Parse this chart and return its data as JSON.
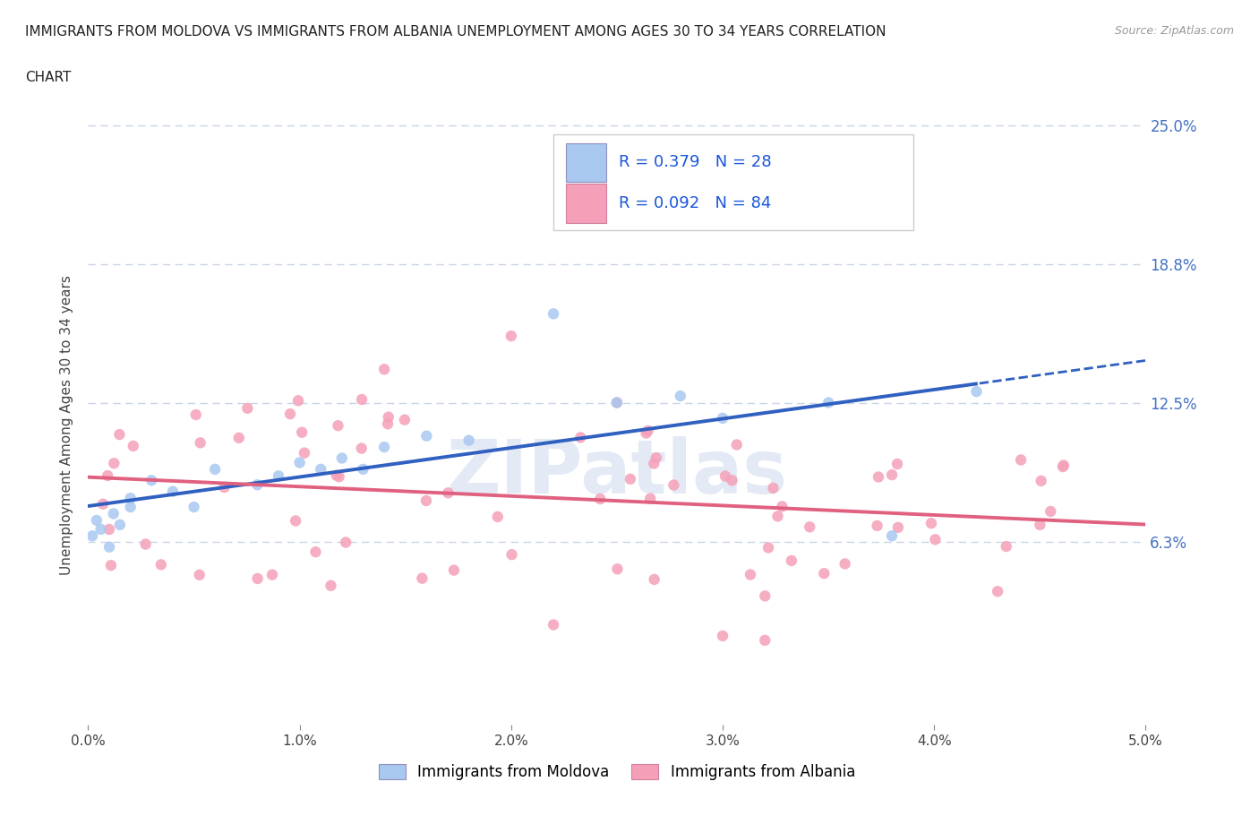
{
  "title_line1": "IMMIGRANTS FROM MOLDOVA VS IMMIGRANTS FROM ALBANIA UNEMPLOYMENT AMONG AGES 30 TO 34 YEARS CORRELATION",
  "title_line2": "CHART",
  "source": "Source: ZipAtlas.com",
  "ylabel": "Unemployment Among Ages 30 to 34 years",
  "xlim": [
    0.0,
    0.05
  ],
  "ylim": [
    -0.02,
    0.25
  ],
  "ytick_vals": [
    0.0625,
    0.125,
    0.1875,
    0.25
  ],
  "ytick_labels": [
    "6.3%",
    "12.5%",
    "18.8%",
    "25.0%"
  ],
  "xtick_vals": [
    0.0,
    0.01,
    0.02,
    0.03,
    0.04,
    0.05
  ],
  "xtick_labels": [
    "0.0%",
    "1.0%",
    "2.0%",
    "3.0%",
    "4.0%",
    "5.0%"
  ],
  "moldova_color": "#a8c8f0",
  "albania_color": "#f5a0b8",
  "moldova_line_color": "#3060c0",
  "albania_line_color": "#e06080",
  "moldova_R": 0.379,
  "moldova_N": 28,
  "albania_R": 0.092,
  "albania_N": 84,
  "legend_text_color": "#1a56db",
  "legend_N_color": "#e06080",
  "watermark_text": "ZIPatlas",
  "background_color": "#ffffff",
  "grid_color": "#c8d4e8"
}
